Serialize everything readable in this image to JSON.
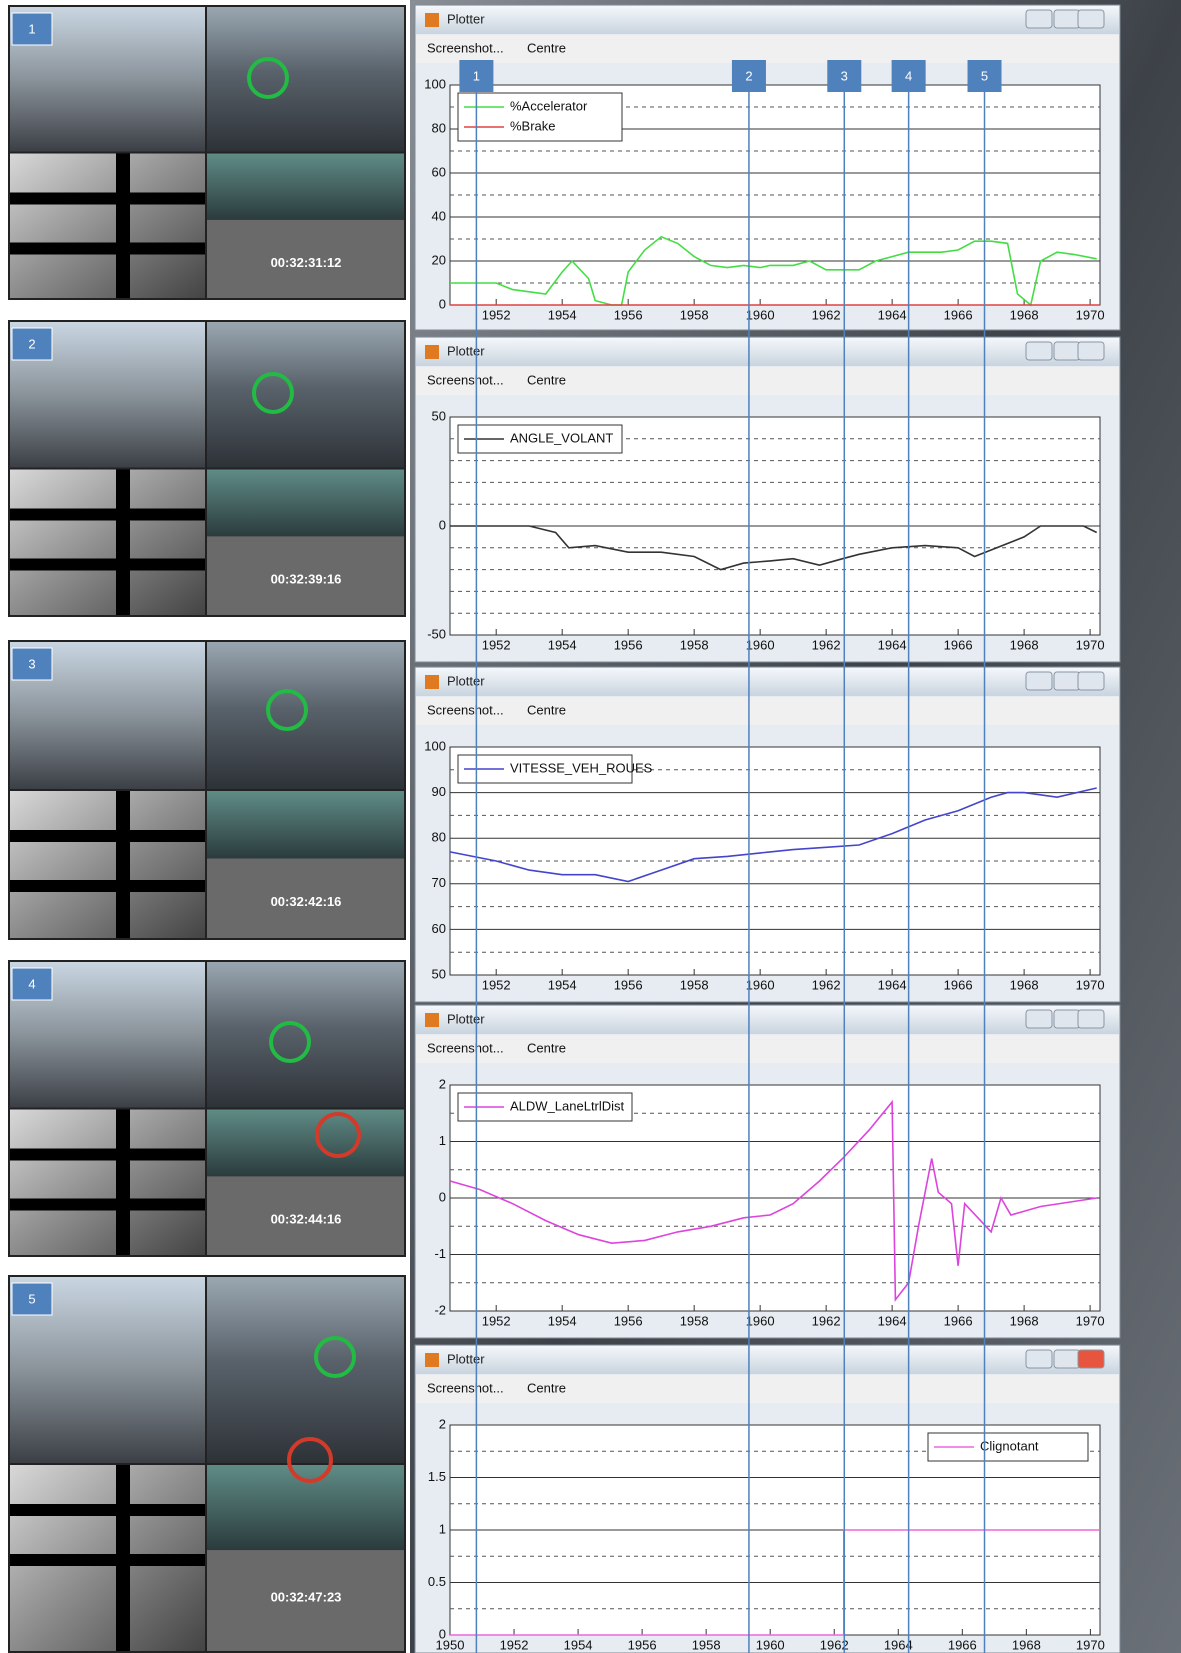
{
  "frames": [
    {
      "label": "1",
      "time": "00:32:31:12"
    },
    {
      "label": "2",
      "time": "00:32:39:16"
    },
    {
      "label": "3",
      "time": "00:32:42:16"
    },
    {
      "label": "4",
      "time": "00:32:44:16"
    },
    {
      "label": "5",
      "time": "00:32:47:23"
    }
  ],
  "plotters": [
    {
      "title": "Plotter",
      "menu": [
        "Screenshot...",
        "Centre"
      ]
    },
    {
      "title": "Plotter",
      "menu": [
        "Screenshot...",
        "Centre"
      ]
    },
    {
      "title": "Plotter",
      "menu": [
        "Screenshot...",
        "Centre"
      ]
    },
    {
      "title": "Plotter",
      "menu": [
        "Screenshot...",
        "Centre"
      ]
    },
    {
      "title": "Plotter",
      "menu": [
        "Screenshot...",
        "Centre"
      ]
    }
  ],
  "markers": [
    {
      "label": "1",
      "x": 1951.4
    },
    {
      "label": "2",
      "x": 1959.66
    },
    {
      "label": "3",
      "x": 1962.55
    },
    {
      "label": "4",
      "x": 1964.5
    },
    {
      "label": "5",
      "x": 1966.8
    }
  ],
  "chart_data": [
    {
      "type": "line",
      "legend": "upper left",
      "xlim": [
        1950.6,
        1970.3
      ],
      "xticks": [
        1952,
        1954,
        1956,
        1958,
        1960,
        1962,
        1964,
        1966,
        1968,
        1970
      ],
      "ylim": [
        0,
        100
      ],
      "yticks": [
        0,
        20,
        40,
        60,
        80,
        100
      ],
      "minor_yticks": [
        10,
        30,
        50,
        70,
        90
      ],
      "series": [
        {
          "name": "%Accelerator",
          "color": "#44dd44",
          "x": [
            1950.6,
            1952,
            1952.5,
            1953,
            1953.5,
            1954,
            1954.3,
            1954.8,
            1955,
            1955.5,
            1955.8,
            1956,
            1956.5,
            1957,
            1957.5,
            1958,
            1958.5,
            1959,
            1959.5,
            1960,
            1960.3,
            1961,
            1961.5,
            1962,
            1962.5,
            1963,
            1963.5,
            1964,
            1964.5,
            1965,
            1965.5,
            1966,
            1966.5,
            1967,
            1967.5,
            1967.8,
            1968.2,
            1968.5,
            1969,
            1969.5,
            1970.2
          ],
          "values": [
            10,
            10,
            7,
            6,
            5,
            15,
            20,
            12,
            2,
            0,
            0,
            15,
            25,
            31,
            28,
            22,
            18,
            17,
            18,
            17,
            18,
            18,
            20,
            16,
            16,
            16,
            20,
            22,
            24,
            24,
            24,
            25,
            29,
            29,
            28,
            5,
            0,
            20,
            24,
            23,
            21
          ]
        },
        {
          "name": "%Brake",
          "color": "#e04040",
          "x": [
            1950.6,
            1970.3
          ],
          "values": [
            0,
            0
          ]
        }
      ]
    },
    {
      "type": "line",
      "legend": "upper left",
      "xlim": [
        1950.6,
        1970.3
      ],
      "xticks": [
        1952,
        1954,
        1956,
        1958,
        1960,
        1962,
        1964,
        1966,
        1968,
        1970
      ],
      "ylim": [
        -50,
        50
      ],
      "yticks": [
        -50,
        0,
        50
      ],
      "minor_yticks": [
        -40,
        -30,
        -20,
        -10,
        10,
        20,
        30,
        40
      ],
      "series": [
        {
          "name": "ANGLE_VOLANT",
          "color": "#333333",
          "x": [
            1950.6,
            1953,
            1953.8,
            1954.2,
            1955,
            1956,
            1957,
            1958,
            1958.8,
            1959.5,
            1960.3,
            1961,
            1961.8,
            1962.5,
            1963,
            1964,
            1965,
            1966,
            1966.5,
            1967,
            1968,
            1968.5,
            1969.8,
            1970.2
          ],
          "values": [
            0,
            0,
            -3,
            -10,
            -9,
            -12,
            -12,
            -14,
            -20,
            -17,
            -16,
            -15,
            -18,
            -15,
            -13,
            -10,
            -9,
            -10,
            -14,
            -11,
            -5,
            0,
            0,
            -3
          ]
        }
      ]
    },
    {
      "type": "line",
      "legend": "upper left",
      "xlim": [
        1950.6,
        1970.3
      ],
      "xticks": [
        1952,
        1954,
        1956,
        1958,
        1960,
        1962,
        1964,
        1966,
        1968,
        1970
      ],
      "ylim": [
        50,
        100
      ],
      "yticks": [
        50,
        60,
        70,
        80,
        90,
        100
      ],
      "minor_yticks": [
        55,
        65,
        75,
        85,
        95
      ],
      "series": [
        {
          "name": "VITESSE_VEH_ROUES",
          "color": "#4444cc",
          "x": [
            1950.6,
            1952,
            1953,
            1954,
            1955,
            1956,
            1957,
            1958,
            1959,
            1960.3,
            1961,
            1962,
            1963,
            1964,
            1965,
            1966,
            1967,
            1967.5,
            1968,
            1969,
            1970.2
          ],
          "values": [
            77,
            75,
            73,
            72,
            72,
            70.5,
            73,
            75.5,
            76,
            77,
            77.5,
            78,
            78.5,
            81,
            84,
            86,
            89,
            90,
            90,
            89,
            91
          ]
        }
      ]
    },
    {
      "type": "line",
      "legend": "upper left",
      "xlim": [
        1950.6,
        1970.3
      ],
      "xticks": [
        1952,
        1954,
        1956,
        1958,
        1960,
        1962,
        1964,
        1966,
        1968,
        1970
      ],
      "ylim": [
        -2,
        2
      ],
      "yticks": [
        -2,
        -1,
        0,
        1,
        2
      ],
      "minor_yticks": [
        -1.5,
        -0.5,
        0.5,
        1.5
      ],
      "series": [
        {
          "name": "ALDW_LaneLtrlDist",
          "color": "#dd44dd",
          "x": [
            1950.6,
            1951.5,
            1952.5,
            1953.5,
            1954.5,
            1955.5,
            1956.5,
            1957.5,
            1958.5,
            1959.5,
            1960.3,
            1961,
            1961.8,
            1962.5,
            1963.3,
            1964,
            1964.1,
            1964.5,
            1964.8,
            1965.2,
            1965.4,
            1965.8,
            1966,
            1966.2,
            1967,
            1967.3,
            1967.6,
            1968.5,
            1970.2
          ],
          "values": [
            0.3,
            0.15,
            -0.1,
            -0.4,
            -0.65,
            -0.8,
            -0.75,
            -0.6,
            -0.5,
            -0.35,
            -0.3,
            -0.1,
            0.3,
            0.7,
            1.2,
            1.7,
            -1.8,
            -1.5,
            -0.5,
            0.7,
            0.1,
            -0.1,
            -1.2,
            -0.1,
            -0.6,
            0,
            -0.3,
            -0.15,
            0
          ]
        }
      ]
    },
    {
      "type": "line",
      "legend": "upper right",
      "xlim": [
        1950,
        1970.3
      ],
      "xticks": [
        1950,
        1952,
        1954,
        1956,
        1958,
        1960,
        1962,
        1964,
        1966,
        1968,
        1970
      ],
      "ylim": [
        0,
        2
      ],
      "yticks": [
        0,
        0.5,
        1,
        1.5,
        2
      ],
      "minor_yticks": [
        0.25,
        0.75,
        1.25,
        1.75
      ],
      "series": [
        {
          "name": "Clignotant",
          "color": "#ee66dd",
          "x": [
            1950,
            1962.3,
            1962.3,
            1970.3
          ],
          "values": [
            0,
            0,
            1,
            1
          ]
        }
      ]
    }
  ]
}
